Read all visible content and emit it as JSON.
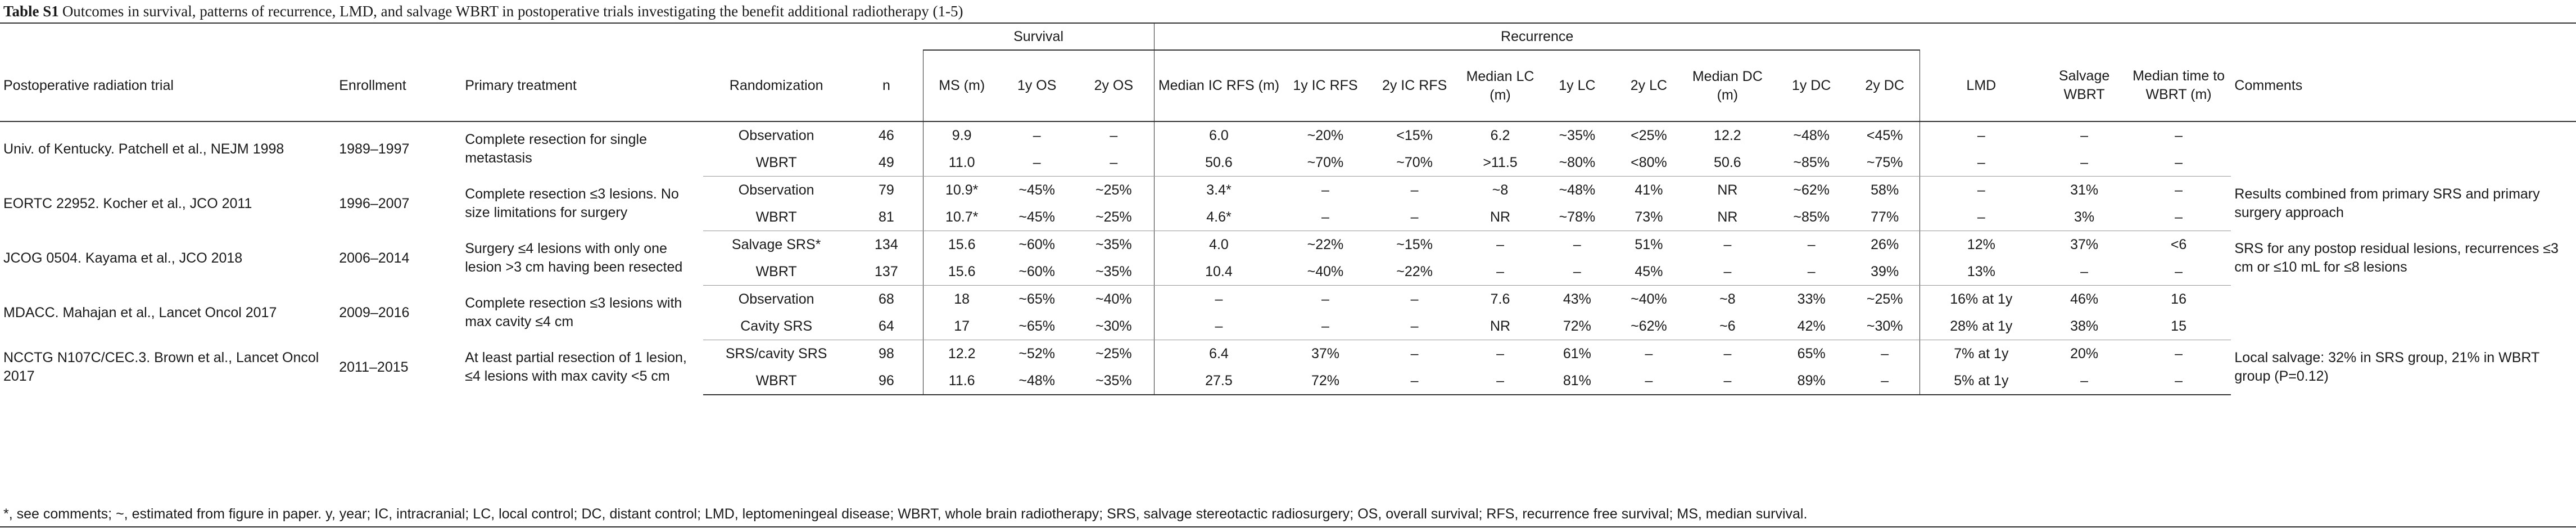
{
  "caption": {
    "label": "Table S1",
    "text": "Outcomes in survival, patterns of recurrence, LMD, and salvage WBRT in postoperative trials investigating the benefit additional radiotherapy (1-5)"
  },
  "groups": {
    "survival": "Survival",
    "recurrence": "Recurrence"
  },
  "headers": {
    "trial": "Postoperative radiation trial",
    "enrollment": "Enrollment",
    "treatment": "Primary treatment",
    "randomization": "Randomization",
    "n": "n",
    "ms": "MS (m)",
    "os1": "1y OS",
    "os2": "2y OS",
    "icrfs": "Median IC RFS (m)",
    "icrfs1": "1y IC RFS",
    "icrfs2": "2y IC RFS",
    "lc": "Median LC (m)",
    "lc1": "1y LC",
    "lc2": "2y LC",
    "dc": "Median DC (m)",
    "dc1": "1y DC",
    "dc2": "2y DC",
    "lmd": "LMD",
    "salvage": "Salvage WBRT",
    "tt": "Median time to WBRT (m)",
    "comments": "Comments"
  },
  "trials": [
    {
      "trial": "Univ. of Kentucky. Patchell et al., NEJM 1998",
      "enrollment": "1989–1997",
      "treatment": "Complete resection for single metastasis",
      "comments": "",
      "arms": [
        [
          "Observation",
          "46",
          "9.9",
          "–",
          "–",
          "6.0",
          "~20%",
          "<15%",
          "6.2",
          "~35%",
          "<25%",
          "12.2",
          "~48%",
          "<45%",
          "–",
          "–",
          "–"
        ],
        [
          "WBRT",
          "49",
          "11.0",
          "–",
          "–",
          "50.6",
          "~70%",
          "~70%",
          ">11.5",
          "~80%",
          "<80%",
          "50.6",
          "~85%",
          "~75%",
          "–",
          "–",
          "–"
        ]
      ]
    },
    {
      "trial": "EORTC 22952. Kocher et al., JCO 2011",
      "enrollment": "1996–2007",
      "treatment": "Complete resection ≤3 lesions. No size limitations for surgery",
      "comments": "Results combined from primary SRS and primary surgery approach",
      "arms": [
        [
          "Observation",
          "79",
          "10.9*",
          "~45%",
          "~25%",
          "3.4*",
          "–",
          "–",
          "~8",
          "~48%",
          "41%",
          "NR",
          "~62%",
          "58%",
          "–",
          "31%",
          "–"
        ],
        [
          "WBRT",
          "81",
          "10.7*",
          "~45%",
          "~25%",
          "4.6*",
          "–",
          "–",
          "NR",
          "~78%",
          "73%",
          "NR",
          "~85%",
          "77%",
          "–",
          "3%",
          "–"
        ]
      ]
    },
    {
      "trial": "JCOG 0504. Kayama et al., JCO 2018",
      "enrollment": "2006–2014",
      "treatment": "Surgery ≤4 lesions with only one lesion >3 cm having been resected",
      "comments": "SRS for any postop residual lesions, recurrences ≤3 cm or ≤10 mL for ≤8 lesions",
      "arms": [
        [
          "Salvage SRS*",
          "134",
          "15.6",
          "~60%",
          "~35%",
          "4.0",
          "~22%",
          "~15%",
          "–",
          "–",
          "51%",
          "–",
          "–",
          "26%",
          "12%",
          "37%",
          "<6"
        ],
        [
          "WBRT",
          "137",
          "15.6",
          "~60%",
          "~35%",
          "10.4",
          "~40%",
          "~22%",
          "–",
          "–",
          "45%",
          "–",
          "–",
          "39%",
          "13%",
          "–",
          "–"
        ]
      ]
    },
    {
      "trial": "MDACC. Mahajan et al., Lancet Oncol 2017",
      "enrollment": "2009–2016",
      "treatment": "Complete resection ≤3 lesions with max cavity ≤4 cm",
      "comments": "",
      "arms": [
        [
          "Observation",
          "68",
          "18",
          "~65%",
          "~40%",
          "–",
          "–",
          "–",
          "7.6",
          "43%",
          "~40%",
          "~8",
          "33%",
          "~25%",
          "16% at 1y",
          "46%",
          "16"
        ],
        [
          "Cavity SRS",
          "64",
          "17",
          "~65%",
          "~30%",
          "–",
          "–",
          "–",
          "NR",
          "72%",
          "~62%",
          "~6",
          "42%",
          "~30%",
          "28% at 1y",
          "38%",
          "15"
        ]
      ]
    },
    {
      "trial": "NCCTG N107C/CEC.3. Brown et al., Lancet Oncol 2017",
      "enrollment": "2011–2015",
      "treatment": "At least partial resection of 1 lesion, ≤4 lesions with max cavity <5 cm",
      "comments": "Local salvage: 32% in SRS group, 21% in WBRT group (P=0.12)",
      "arms": [
        [
          "SRS/cavity SRS",
          "98",
          "12.2",
          "~52%",
          "~25%",
          "6.4",
          "37%",
          "–",
          "–",
          "61%",
          "–",
          "–",
          "65%",
          "–",
          "7% at 1y",
          "20%",
          "–"
        ],
        [
          "WBRT",
          "96",
          "11.6",
          "~48%",
          "~35%",
          "27.5",
          "72%",
          "–",
          "–",
          "81%",
          "–",
          "–",
          "89%",
          "–",
          "5% at 1y",
          "–",
          "–"
        ]
      ]
    }
  ],
  "footnote": "*, see comments; ~, estimated from figure in paper. y, year; IC, intracranial; LC, local control; DC, distant control; LMD, leptomeningeal disease; WBRT, whole brain radiotherapy; SRS, salvage stereotactic radiosurgery; OS, overall survival; RFS, recurrence free survival; MS, median survival."
}
